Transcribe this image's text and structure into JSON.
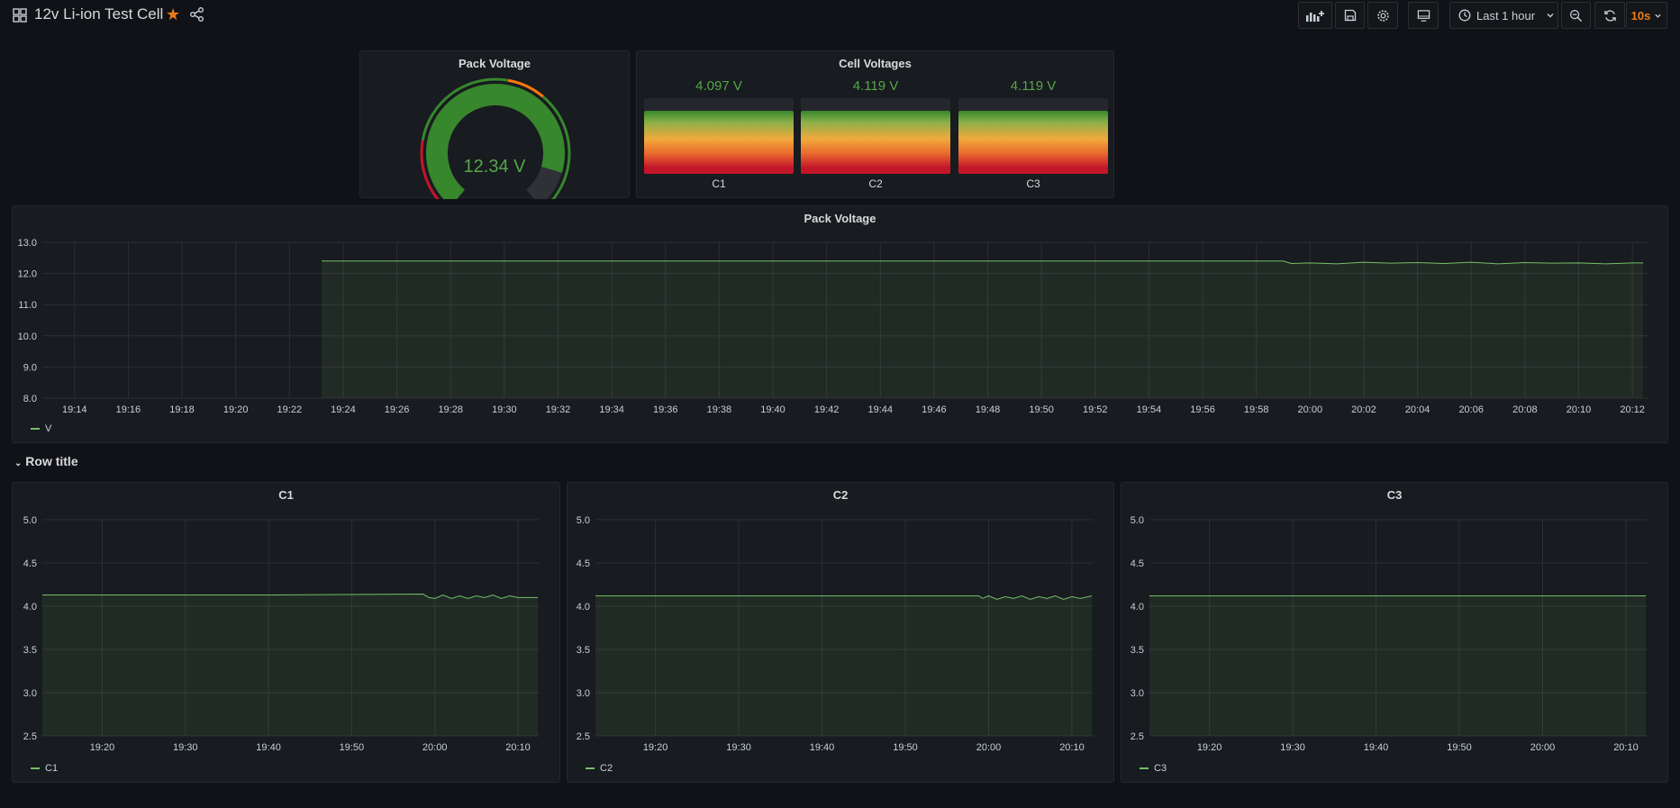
{
  "dashboard": {
    "title": "12v Li-ion Test Cell",
    "time_range": "Last 1 hour",
    "refresh": "10s",
    "accent": "#eb7b18",
    "series_color": "#73bf69",
    "value_color": "#56a64b"
  },
  "gauge": {
    "title": "Pack Voltage",
    "value": 12.34,
    "display": "12.34 V",
    "fill_fraction": 0.88
  },
  "cells": {
    "title": "Cell Voltages",
    "items": [
      {
        "name": "C1",
        "display": "4.097 V"
      },
      {
        "name": "C2",
        "display": "4.119 V"
      },
      {
        "name": "C3",
        "display": "4.119 V"
      }
    ]
  },
  "row": {
    "title": "Row title"
  },
  "chart_data": [
    {
      "type": "area",
      "title": "Pack Voltage",
      "ylim": [
        8.0,
        13.0
      ],
      "yticks": [
        "13.0",
        "12.0",
        "11.0",
        "10.0",
        "9.0",
        "8.0"
      ],
      "xticks": [
        "19:14",
        "19:16",
        "19:18",
        "19:20",
        "19:22",
        "19:24",
        "19:26",
        "19:28",
        "19:30",
        "19:32",
        "19:34",
        "19:36",
        "19:38",
        "19:40",
        "19:42",
        "19:44",
        "19:46",
        "19:48",
        "19:50",
        "19:52",
        "19:54",
        "19:56",
        "19:58",
        "20:00",
        "20:02",
        "20:04",
        "20:06",
        "20:08",
        "20:10",
        "20:12"
      ],
      "xrange_minutes": [
        72.8,
        132.6
      ],
      "series": [
        {
          "name": "V",
          "x": [
            83.2,
            100,
            119,
            119.3,
            120,
            121,
            122,
            123,
            124,
            125,
            126,
            127,
            128,
            129,
            130,
            131,
            132,
            132.4
          ],
          "y": [
            12.4,
            12.4,
            12.4,
            12.32,
            12.34,
            12.31,
            12.36,
            12.33,
            12.35,
            12.32,
            12.36,
            12.31,
            12.35,
            12.33,
            12.34,
            12.31,
            12.34,
            12.34
          ]
        }
      ],
      "grid": true,
      "legend": "bottom-left"
    },
    {
      "type": "area",
      "title": "C1",
      "ylim": [
        2.5,
        5.0
      ],
      "yticks": [
        "5.0",
        "4.5",
        "4.0",
        "3.5",
        "3.0",
        "2.5"
      ],
      "xticks": [
        "19:20",
        "19:30",
        "19:40",
        "19:50",
        "20:00",
        "20:10"
      ],
      "xrange_minutes": [
        72.8,
        132.6
      ],
      "series": [
        {
          "name": "C1",
          "x": [
            72.8,
            100,
            118.6,
            119.3,
            120,
            121,
            122,
            123,
            124,
            125,
            126,
            127,
            128,
            129,
            130,
            131,
            132.4
          ],
          "y": [
            4.13,
            4.13,
            4.14,
            4.1,
            4.09,
            4.13,
            4.09,
            4.12,
            4.09,
            4.12,
            4.1,
            4.13,
            4.09,
            4.12,
            4.1,
            4.1,
            4.1
          ]
        }
      ],
      "grid": true,
      "legend": "bottom-left"
    },
    {
      "type": "area",
      "title": "C2",
      "ylim": [
        2.5,
        5.0
      ],
      "yticks": [
        "5.0",
        "4.5",
        "4.0",
        "3.5",
        "3.0",
        "2.5"
      ],
      "xticks": [
        "19:20",
        "19:30",
        "19:40",
        "19:50",
        "20:00",
        "20:10"
      ],
      "xrange_minutes": [
        72.8,
        132.6
      ],
      "series": [
        {
          "name": "C2",
          "x": [
            72.8,
            100,
            118.8,
            119.3,
            120,
            121,
            122,
            123,
            124,
            125,
            126,
            127,
            128,
            129,
            130,
            131,
            132.4
          ],
          "y": [
            4.12,
            4.12,
            4.12,
            4.09,
            4.12,
            4.08,
            4.11,
            4.09,
            4.12,
            4.08,
            4.11,
            4.09,
            4.12,
            4.08,
            4.11,
            4.09,
            4.12
          ]
        }
      ],
      "grid": true,
      "legend": "bottom-left"
    },
    {
      "type": "area",
      "title": "C3",
      "ylim": [
        2.5,
        5.0
      ],
      "yticks": [
        "5.0",
        "4.5",
        "4.0",
        "3.5",
        "3.0",
        "2.5"
      ],
      "xticks": [
        "19:20",
        "19:30",
        "19:40",
        "19:50",
        "20:00",
        "20:10"
      ],
      "xrange_minutes": [
        72.8,
        132.6
      ],
      "series": [
        {
          "name": "C3",
          "x": [
            72.8,
            132.4
          ],
          "y": [
            4.12,
            4.12
          ]
        }
      ],
      "grid": true,
      "legend": "bottom-left"
    }
  ]
}
